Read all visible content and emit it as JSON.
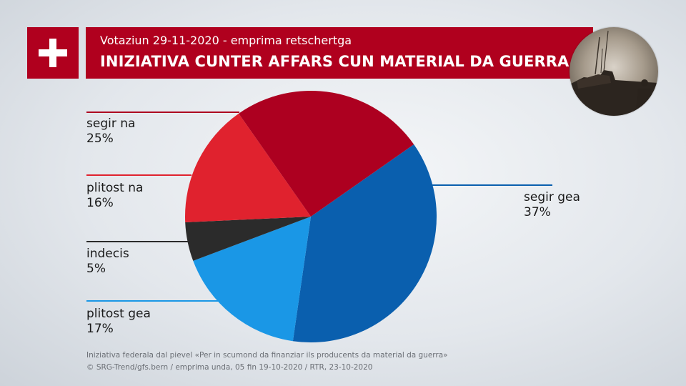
{
  "header": {
    "subtitle": "Votaziun 29-11-2020 - emprima retschertga",
    "title": "INIZIATIVA CUNTER AFFARS CUN MATERIAL DA GUERRA"
  },
  "chart_data": {
    "type": "pie",
    "slices": [
      {
        "label": "segir gea",
        "value": 37,
        "value_text": "37%",
        "color": "#0a5fae"
      },
      {
        "label": "plitost gea",
        "value": 17,
        "value_text": "17%",
        "color": "#1a97e6"
      },
      {
        "label": "indecis",
        "value": 5,
        "value_text": "5%",
        "color": "#2b2b2b"
      },
      {
        "label": "plitost na",
        "value": 16,
        "value_text": "16%",
        "color": "#e0222e"
      },
      {
        "label": "segir na",
        "value": 25,
        "value_text": "25%",
        "color": "#ad0020"
      }
    ]
  },
  "footer": {
    "line1": "Iniziativa federala dal pievel «Per in scumond da finanziar ils producents da material da guerra»",
    "line2": "© SRG-Trend/gfs.bern  /  emprima unda, 05 fin 19-10-2020  / RTR, 23-10-2020"
  }
}
